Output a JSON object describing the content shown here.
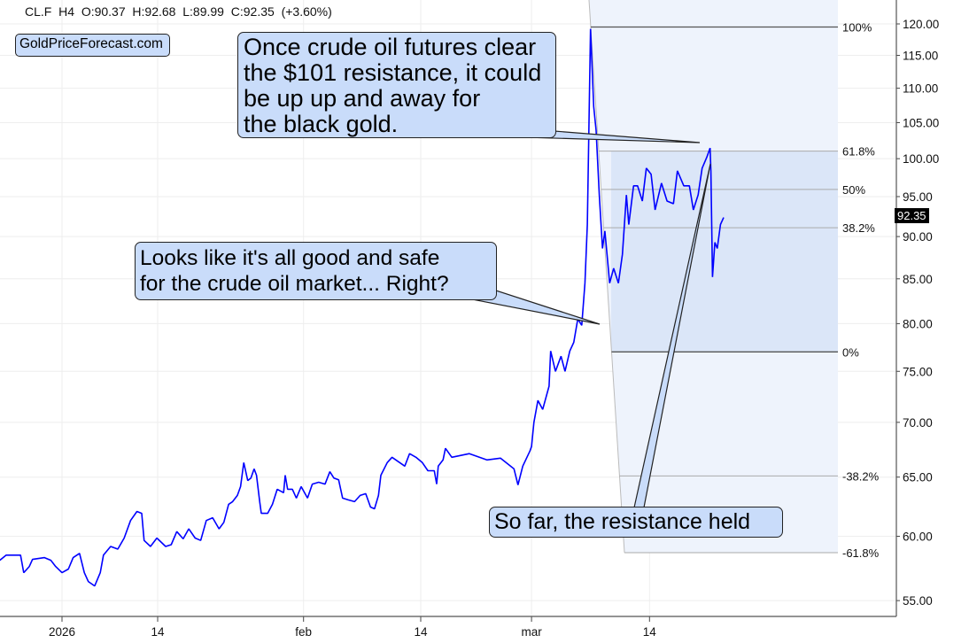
{
  "header": {
    "symbol": "CL.F",
    "timeframe": "H4",
    "open": "O:90.37",
    "high": "H:92.68",
    "low": "L:89.99",
    "close": "C:92.35",
    "change": "(+3.60%)"
  },
  "logo": "GoldPriceForecast.com",
  "last_price": "92.35",
  "callouts": {
    "resistance": [
      "Once crude oil futures clear",
      "the $101 resistance, it could",
      "be up up and away for",
      "the black gold."
    ],
    "safe": [
      "Looks like it's all good and safe",
      "for the crude oil market... Right?"
    ],
    "held": [
      "So far, the resistance held"
    ]
  },
  "colors": {
    "line": "#0000ff",
    "callout": "#c9dcfa",
    "fib_light": "#eef3fc",
    "fib_dark": "#dbe6f8"
  },
  "chart_data": {
    "type": "line",
    "title": "CL.F H4",
    "xlabel": "",
    "ylabel": "",
    "y_scale": "log",
    "ylim": [
      53.5,
      123
    ],
    "xlim": [
      -7.8,
      103.3
    ],
    "grid": true,
    "x_unit": "days since 2026-01-01",
    "x_ticks": [
      {
        "day": 0,
        "label": "2026"
      },
      {
        "day": 12,
        "label": "14"
      },
      {
        "day": 30.3,
        "label": "feb"
      },
      {
        "day": 45,
        "label": "14"
      },
      {
        "day": 58.9,
        "label": "mar"
      },
      {
        "day": 73.7,
        "label": "14"
      }
    ],
    "y_ticks": [
      "55.00",
      "60.00",
      "65.00",
      "70.00",
      "75.00",
      "80.00",
      "85.00",
      "90.00",
      "95.00",
      "100.00",
      "105.00",
      "110.00",
      "115.00",
      "120.00"
    ],
    "fibonacci": {
      "high": 119.5,
      "low": 77.0,
      "levels": [
        {
          "value": 1,
          "label": "100%"
        },
        {
          "value": 0.618,
          "label": "61.8%"
        },
        {
          "value": 0.5,
          "label": "50%"
        },
        {
          "value": 0.382,
          "label": "38.2%"
        },
        {
          "value": 0,
          "label": "0%"
        },
        {
          "value": -0.382,
          "label": "-38.2%"
        },
        {
          "value": -0.618,
          "label": "-61.8%"
        }
      ]
    },
    "series": [
      {
        "name": "CL.F",
        "points": [
          [
            -7.8,
            58.08
          ],
          [
            -7.0,
            58.49
          ],
          [
            -5.2,
            58.49
          ],
          [
            -4.8,
            57.12
          ],
          [
            -4.1,
            57.6
          ],
          [
            -3.7,
            58.15
          ],
          [
            -2.2,
            58.29
          ],
          [
            -1.4,
            58.08
          ],
          [
            -0.8,
            57.6
          ],
          [
            0,
            57.12
          ],
          [
            0.8,
            57.4
          ],
          [
            1.4,
            58.29
          ],
          [
            2.2,
            58.63
          ],
          [
            2.8,
            57.12
          ],
          [
            3.3,
            56.44
          ],
          [
            4.1,
            56.1
          ],
          [
            4.8,
            57.12
          ],
          [
            5.2,
            58.49
          ],
          [
            6.1,
            59.18
          ],
          [
            7.0,
            58.97
          ],
          [
            7.8,
            59.86
          ],
          [
            8.6,
            61.29
          ],
          [
            9.4,
            62.05
          ],
          [
            10,
            61.89
          ],
          [
            10.3,
            59.66
          ],
          [
            11.1,
            59.18
          ],
          [
            11.9,
            59.86
          ],
          [
            13,
            59.18
          ],
          [
            13.7,
            59.32
          ],
          [
            14.4,
            60.38
          ],
          [
            15.2,
            59.79
          ],
          [
            15.9,
            60.61
          ],
          [
            16.7,
            59.86
          ],
          [
            17.4,
            59.66
          ],
          [
            18.1,
            61.29
          ],
          [
            18.9,
            61.52
          ],
          [
            19.7,
            60.61
          ],
          [
            20.3,
            61.14
          ],
          [
            20.9,
            62.65
          ],
          [
            21.4,
            62.88
          ],
          [
            22,
            63.41
          ],
          [
            22.4,
            64.17
          ],
          [
            22.8,
            66.29
          ],
          [
            23.3,
            64.7
          ],
          [
            23.7,
            64.92
          ],
          [
            24.1,
            65.73
          ],
          [
            24.4,
            65.16
          ],
          [
            24.8,
            62.88
          ],
          [
            25,
            61.89
          ],
          [
            25.8,
            61.89
          ],
          [
            26.4,
            62.65
          ],
          [
            27,
            63.94
          ],
          [
            27.8,
            63.64
          ],
          [
            28,
            65.16
          ],
          [
            28.3,
            63.94
          ],
          [
            28.9,
            63.94
          ],
          [
            29.4,
            63.18
          ],
          [
            30,
            64.17
          ],
          [
            30.8,
            63.18
          ],
          [
            31.4,
            64.39
          ],
          [
            32.2,
            64.55
          ],
          [
            33,
            64.39
          ],
          [
            33.6,
            65.48
          ],
          [
            34.1,
            64.92
          ],
          [
            34.7,
            64.77
          ],
          [
            35.2,
            63.18
          ],
          [
            35.9,
            63.03
          ],
          [
            36.7,
            62.88
          ],
          [
            37.4,
            63.41
          ],
          [
            38.1,
            63.56
          ],
          [
            38.7,
            62.42
          ],
          [
            39.2,
            62.27
          ],
          [
            39.7,
            63.41
          ],
          [
            40,
            65.16
          ],
          [
            40.8,
            66.29
          ],
          [
            41.4,
            66.77
          ],
          [
            42.2,
            66.37
          ],
          [
            43,
            65.97
          ],
          [
            43.6,
            67.1
          ],
          [
            44.4,
            66.77
          ],
          [
            45.2,
            66.29
          ],
          [
            45.9,
            65.56
          ],
          [
            46.7,
            65.56
          ],
          [
            47,
            64.39
          ],
          [
            47.2,
            65.97
          ],
          [
            47.8,
            66.53
          ],
          [
            48.1,
            67.58
          ],
          [
            48.9,
            66.77
          ],
          [
            51.1,
            67.1
          ],
          [
            53.3,
            66.53
          ],
          [
            55,
            66.69
          ],
          [
            56.7,
            65.73
          ],
          [
            57.2,
            64.32
          ],
          [
            57.8,
            65.97
          ],
          [
            58.7,
            67.34
          ],
          [
            58.9,
            67.74
          ],
          [
            59.2,
            70.0
          ],
          [
            59.7,
            72.11
          ],
          [
            60.3,
            71.23
          ],
          [
            61.1,
            73.51
          ],
          [
            61.3,
            77.09
          ],
          [
            61.9,
            75.0
          ],
          [
            62.6,
            76.55
          ],
          [
            63.1,
            75.0
          ],
          [
            63.7,
            77.09
          ],
          [
            64.2,
            78.0
          ],
          [
            64.7,
            80.5
          ],
          [
            65.2,
            79.82
          ],
          [
            65.6,
            84.5
          ],
          [
            65.9,
            91.48
          ],
          [
            66.3,
            119.2
          ],
          [
            66.7,
            107.3
          ],
          [
            67,
            103.9
          ],
          [
            67.4,
            95.2
          ],
          [
            67.8,
            88.57
          ],
          [
            68.1,
            90.68
          ],
          [
            68.7,
            84.5
          ],
          [
            69.2,
            86.22
          ],
          [
            69.8,
            84.5
          ],
          [
            70.3,
            87.86
          ],
          [
            70.8,
            95.2
          ],
          [
            71.1,
            91.48
          ],
          [
            71.7,
            96.4
          ],
          [
            72.2,
            96.4
          ],
          [
            72.8,
            94.43
          ],
          [
            73.3,
            98.72
          ],
          [
            73.9,
            97.91
          ],
          [
            74.4,
            93.3
          ],
          [
            75.2,
            96.74
          ],
          [
            75.9,
            94.43
          ],
          [
            76.7,
            94.09
          ],
          [
            77.2,
            98.37
          ],
          [
            78,
            96.4
          ],
          [
            78.7,
            96.4
          ],
          [
            79.2,
            93.3
          ],
          [
            79.8,
            95.23
          ],
          [
            80.3,
            98.72
          ],
          [
            80.9,
            100.24
          ],
          [
            81.3,
            101.46
          ],
          [
            81.4,
            98.37
          ],
          [
            81.6,
            85.2
          ],
          [
            81.9,
            89.29
          ],
          [
            82.2,
            88.57
          ],
          [
            82.6,
            91.48
          ],
          [
            83,
            92.35
          ]
        ]
      }
    ]
  }
}
